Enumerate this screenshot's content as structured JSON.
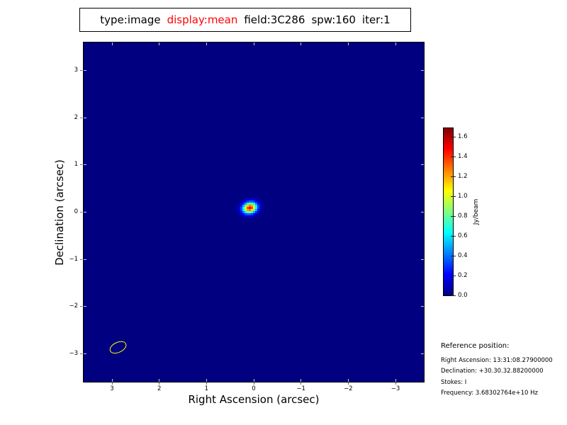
{
  "title_box": {
    "parts": [
      {
        "text": "type:image",
        "color": "#000000"
      },
      {
        "text": "display:mean",
        "color": "#ff0000"
      },
      {
        "text": "field:3C286",
        "color": "#000000"
      },
      {
        "text": "spw:160",
        "color": "#000000"
      },
      {
        "text": "iter:1",
        "color": "#000000"
      }
    ]
  },
  "chart_data": {
    "type": "heatmap",
    "title": "type:image display:mean field:3C286 spw:160 iter:1",
    "xlabel": "Right Ascension (arcsec)",
    "ylabel": "Declination (arcsec)",
    "xlim": [
      3.6,
      -3.6
    ],
    "ylim": [
      -3.6,
      3.6
    ],
    "grid": false,
    "colormap": "jet",
    "background_value": 0.0,
    "background_color": "#000080",
    "xticks": [
      {
        "label": "3",
        "value": 3
      },
      {
        "label": "2",
        "value": 2
      },
      {
        "label": "1",
        "value": 1
      },
      {
        "label": "0",
        "value": 0
      },
      {
        "label": "−1",
        "value": -1
      },
      {
        "label": "−2",
        "value": -2
      },
      {
        "label": "−3",
        "value": -3
      }
    ],
    "yticks": [
      {
        "label": "3",
        "value": 3
      },
      {
        "label": "2",
        "value": 2
      },
      {
        "label": "1",
        "value": 1
      },
      {
        "label": "0",
        "value": 0
      },
      {
        "label": "−1",
        "value": -1
      },
      {
        "label": "−2",
        "value": -2
      },
      {
        "label": "−3",
        "value": -3
      }
    ],
    "colorbar": {
      "label": "Jy/beam",
      "position": "right",
      "vmin": 0.0,
      "vmax": 1.69,
      "ticks": [
        {
          "label": "0.0",
          "value": 0.0
        },
        {
          "label": "0.2",
          "value": 0.2
        },
        {
          "label": "0.4",
          "value": 0.4
        },
        {
          "label": "0.6",
          "value": 0.6
        },
        {
          "label": "0.8",
          "value": 0.8
        },
        {
          "label": "1.0",
          "value": 1.0
        },
        {
          "label": "1.2",
          "value": 1.2
        },
        {
          "label": "1.4",
          "value": 1.4
        },
        {
          "label": "1.6",
          "value": 1.6
        }
      ]
    },
    "source": {
      "ra_arcsec": 0.08,
      "dec_arcsec": 0.09,
      "peak_jy_per_beam": 1.5,
      "sigma_major_arcsec": 0.105,
      "sigma_minor_arcsec": 0.08,
      "position_angle_deg": 15
    },
    "beam": {
      "ra_arcsec": 2.89,
      "dec_arcsec": -2.85,
      "major_arcsec": 0.34,
      "minor_arcsec": 0.19,
      "angle_deg": -25,
      "color": "#ffff00"
    }
  },
  "reference": {
    "heading": "Reference position:",
    "lines": [
      "Right Ascension: 13:31:08.27900000",
      "Declination: +30.30.32.88200000",
      "Stokes: I",
      "Frequency: 3.68302764e+10 Hz"
    ]
  }
}
